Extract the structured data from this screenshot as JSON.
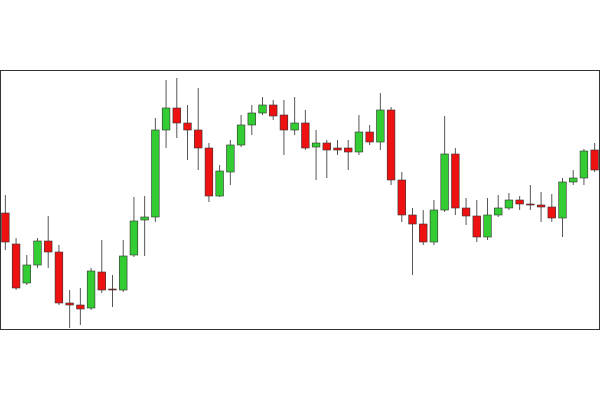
{
  "chart_data": {
    "type": "candlestick",
    "open": [
      117,
      86,
      47,
      65,
      89,
      78,
      27,
      25,
      22,
      58,
      41,
      40,
      75,
      110,
      113,
      200,
      222,
      207,
      200,
      182,
      134,
      158,
      185,
      205,
      217,
      225,
      215,
      200,
      207,
      183,
      187,
      182,
      182,
      178,
      198,
      188,
      220,
      150,
      115,
      106,
      88,
      120,
      176,
      122,
      114,
      93,
      115,
      122,
      130,
      126,
      125,
      123,
      112,
      148,
      152,
      180
    ],
    "high": [
      135,
      92,
      75,
      92,
      114,
      85,
      40,
      42,
      62,
      90,
      55,
      90,
      133,
      134,
      212,
      250,
      252,
      225,
      242,
      187,
      165,
      190,
      215,
      225,
      233,
      230,
      230,
      233,
      220,
      200,
      190,
      190,
      190,
      215,
      205,
      237,
      223,
      158,
      122,
      120,
      130,
      214,
      182,
      132,
      130,
      132,
      135,
      137,
      134,
      145,
      138,
      136,
      152,
      160,
      181,
      187
    ],
    "low": [
      80,
      40,
      45,
      62,
      62,
      25,
      2,
      5,
      20,
      37,
      23,
      38,
      73,
      74,
      108,
      182,
      192,
      170,
      160,
      128,
      133,
      145,
      183,
      195,
      215,
      210,
      175,
      195,
      180,
      150,
      152,
      175,
      160,
      175,
      185,
      180,
      145,
      108,
      55,
      85,
      85,
      118,
      115,
      105,
      88,
      90,
      113,
      120,
      120,
      120,
      108,
      108,
      93,
      145,
      145,
      158
    ],
    "close": [
      88,
      42,
      65,
      89,
      78,
      27,
      25,
      21,
      59,
      40,
      40,
      74,
      109,
      113,
      200,
      222,
      207,
      200,
      182,
      134,
      159,
      185,
      205,
      217,
      225,
      214,
      200,
      207,
      182,
      187,
      180,
      180,
      178,
      198,
      188,
      220,
      150,
      115,
      106,
      88,
      120,
      176,
      122,
      114,
      93,
      115,
      122,
      130,
      126,
      125,
      123,
      112,
      148,
      152,
      179,
      160
    ],
    "ylim": [
      0,
      260
    ],
    "up_color": "#33cc33",
    "down_color": "#ee1111"
  }
}
